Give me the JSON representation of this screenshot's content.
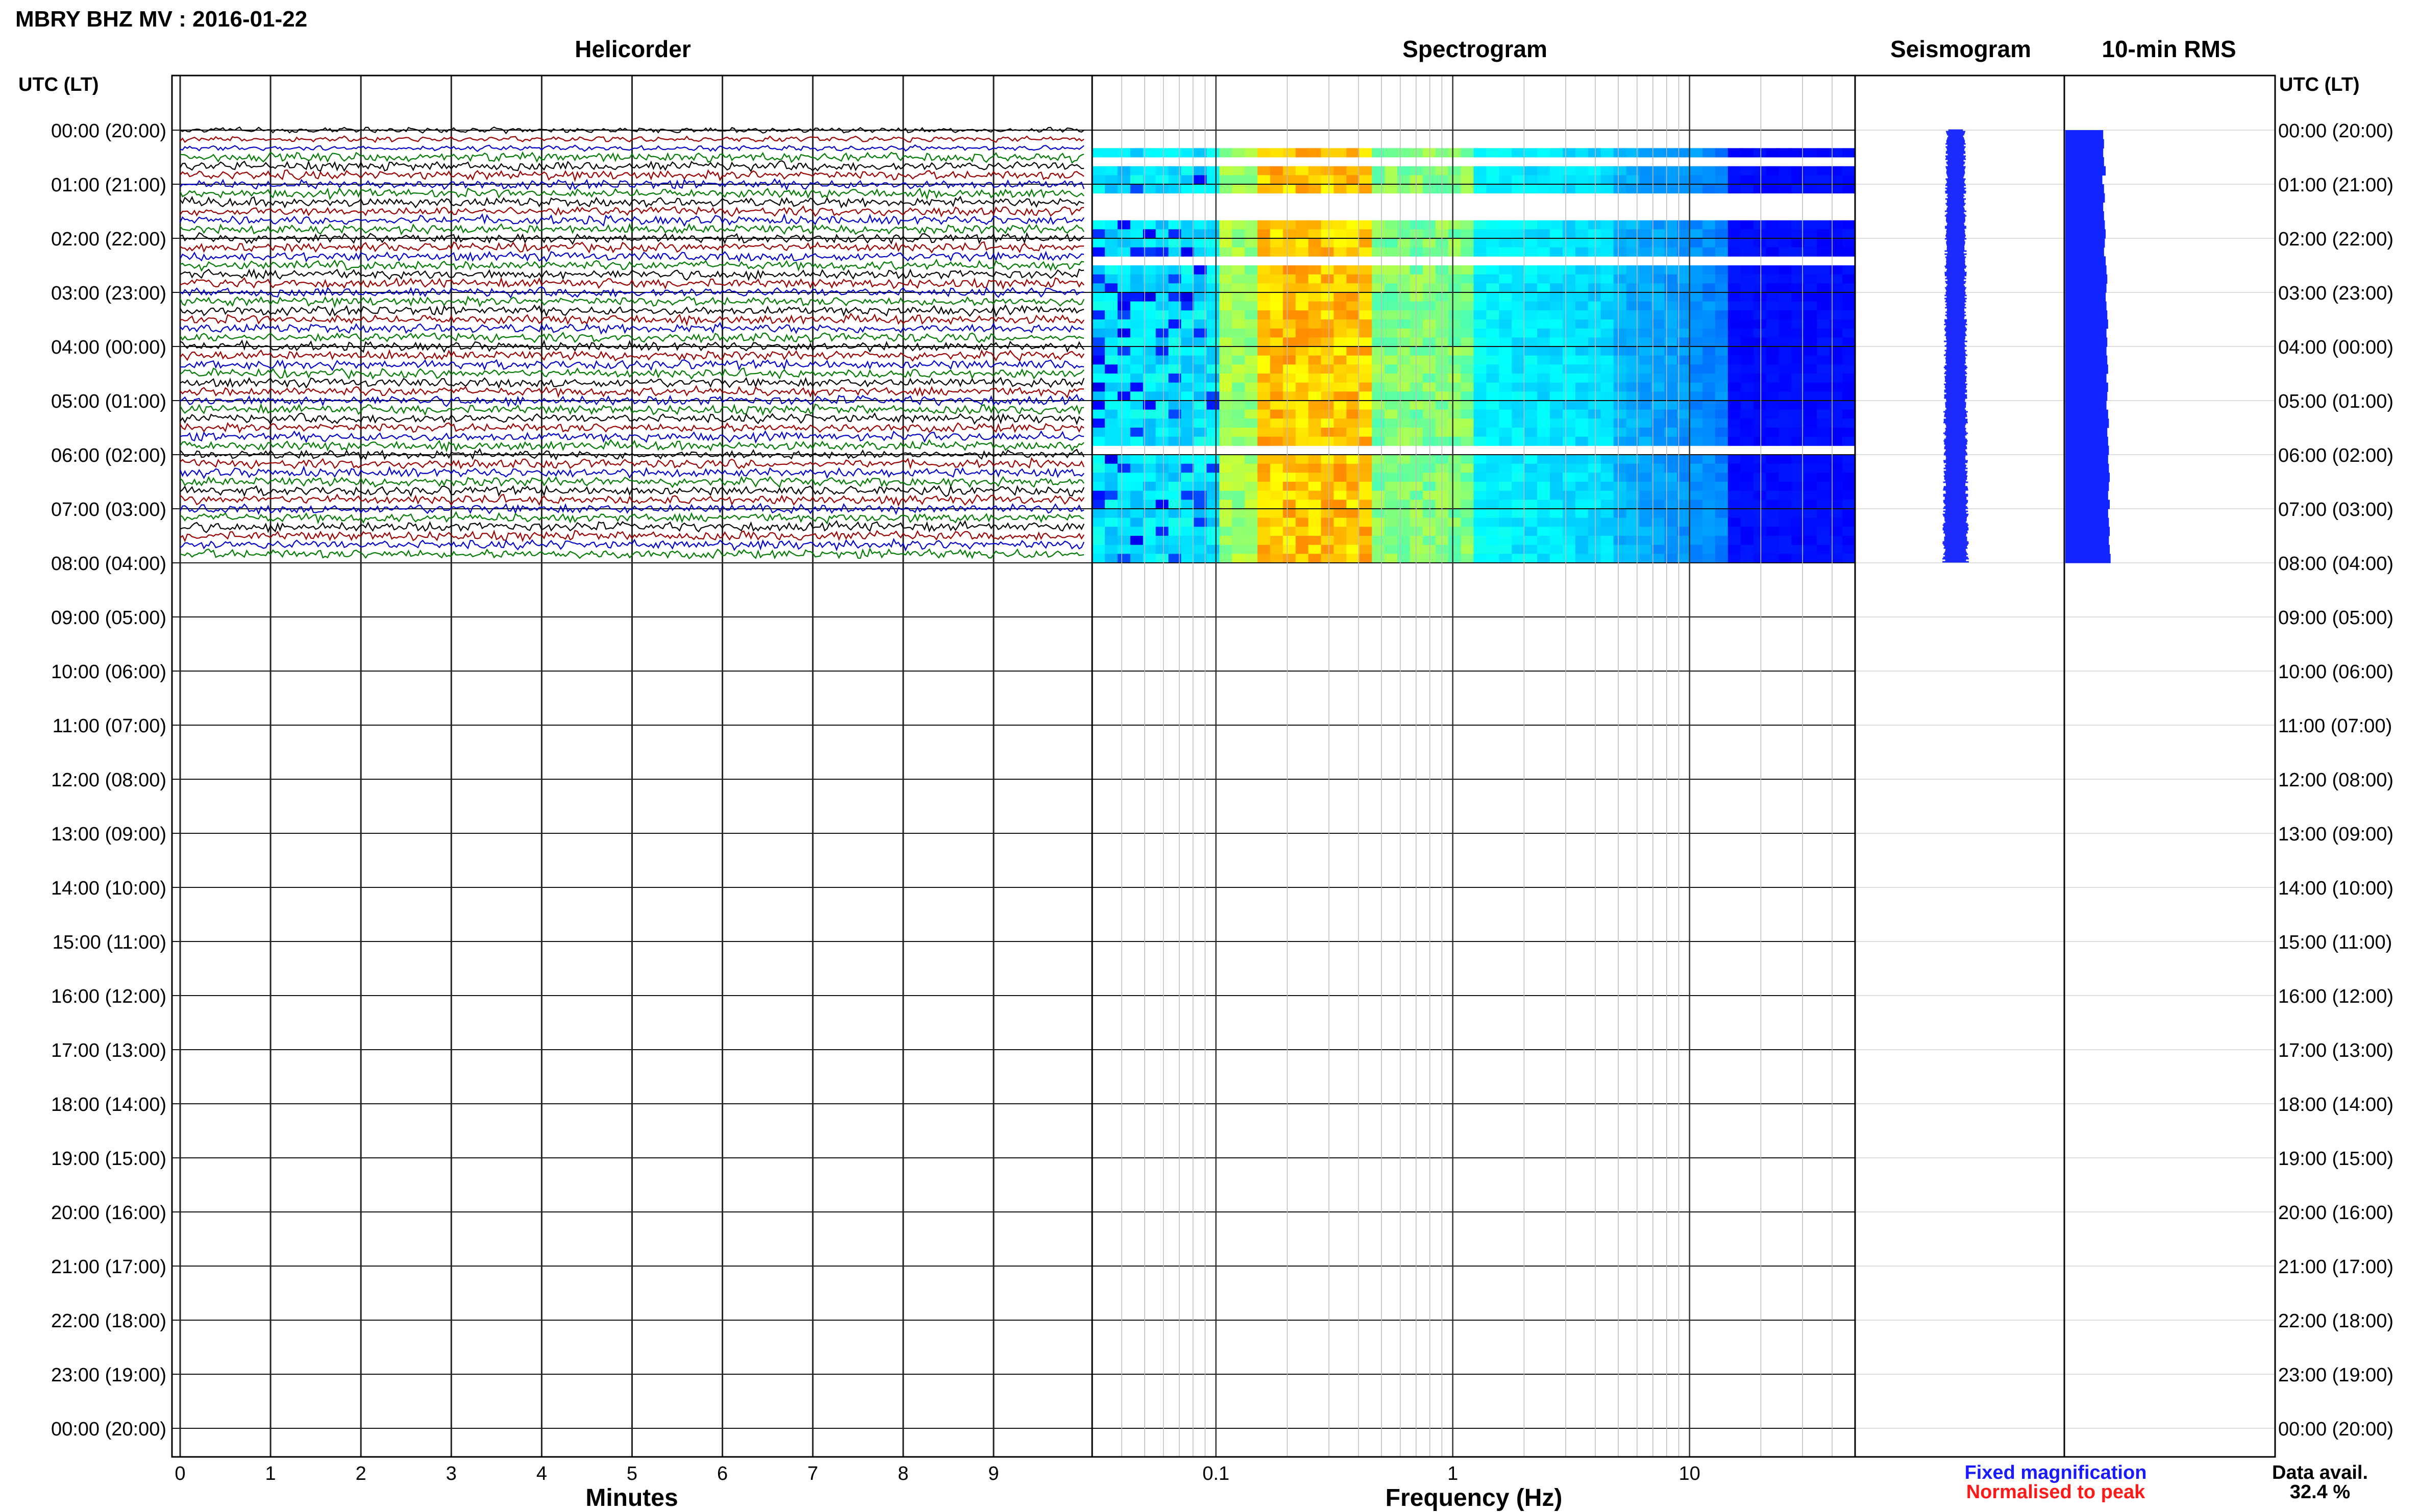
{
  "title": "MBRY BHZ MV : 2016-01-22",
  "panels": {
    "helicorder": "Helicorder",
    "spectrogram": "Spectrogram",
    "seismogram": "Seismogram",
    "rms": "10-min RMS"
  },
  "time_axis_label": "UTC (LT)",
  "time_ticks": [
    "00:00 (20:00)",
    "01:00 (21:00)",
    "02:00 (22:00)",
    "03:00 (23:00)",
    "04:00 (00:00)",
    "05:00 (01:00)",
    "06:00 (02:00)",
    "07:00 (03:00)",
    "08:00 (04:00)",
    "09:00 (05:00)",
    "10:00 (06:00)",
    "11:00 (07:00)",
    "12:00 (08:00)",
    "13:00 (09:00)",
    "14:00 (10:00)",
    "15:00 (11:00)",
    "16:00 (12:00)",
    "17:00 (13:00)",
    "18:00 (14:00)",
    "19:00 (15:00)",
    "20:00 (16:00)",
    "21:00 (17:00)",
    "22:00 (18:00)",
    "23:00 (19:00)",
    "00:00 (20:00)"
  ],
  "helicorder_xlabel": "Minutes",
  "helicorder_xticks": [
    "0",
    "1",
    "2",
    "3",
    "4",
    "5",
    "6",
    "7",
    "8",
    "9"
  ],
  "spectrogram_xlabel": "Frequency (Hz)",
  "spectrogram_xticks": [
    "0.1",
    "1",
    "10"
  ],
  "legend": {
    "fixed": "Fixed magnification",
    "normalised": "Normalised to peak",
    "fixed_color": "#1a1aff",
    "normalised_color": "#ff1a1a"
  },
  "data_avail_label": "Data avail.",
  "data_avail_value": "32.4 %",
  "trace_colors": [
    "#000000",
    "#9a0000",
    "#0000c8",
    "#007a00"
  ],
  "chart_data": [
    {
      "type": "line",
      "title": "Helicorder",
      "xlabel": "Minutes",
      "xlim": [
        0,
        10
      ],
      "ylabel": "UTC (LT)",
      "hours_covered": [
        0,
        8
      ],
      "lines_per_hour": 6,
      "minutes_per_line": 10
    },
    {
      "type": "heatmap",
      "title": "Spectrogram",
      "xlabel": "Frequency (Hz)",
      "xscale": "log",
      "xlim": [
        0.03,
        50
      ],
      "hours_covered": [
        0,
        8
      ],
      "colormap": "jet",
      "peak_frequency_band_hz": [
        0.15,
        0.4
      ]
    },
    {
      "type": "bar",
      "title": "10-min RMS",
      "orientation": "horizontal",
      "bin_minutes": 10,
      "relative_values": [
        0.46,
        0.47,
        0.46,
        0.47,
        0.49,
        0.45,
        0.47,
        0.48,
        0.46,
        0.47,
        0.48,
        0.49,
        0.48,
        0.47,
        0.49,
        0.5,
        0.51,
        0.5,
        0.49,
        0.5,
        0.51,
        0.52,
        0.5,
        0.51,
        0.5,
        0.51,
        0.52,
        0.5,
        0.52,
        0.51,
        0.5,
        0.52,
        0.53,
        0.51,
        0.52,
        0.53,
        0.52,
        0.53,
        0.54,
        0.53,
        0.52,
        0.54,
        0.52,
        0.53,
        0.54,
        0.53,
        0.54,
        0.55
      ]
    }
  ]
}
